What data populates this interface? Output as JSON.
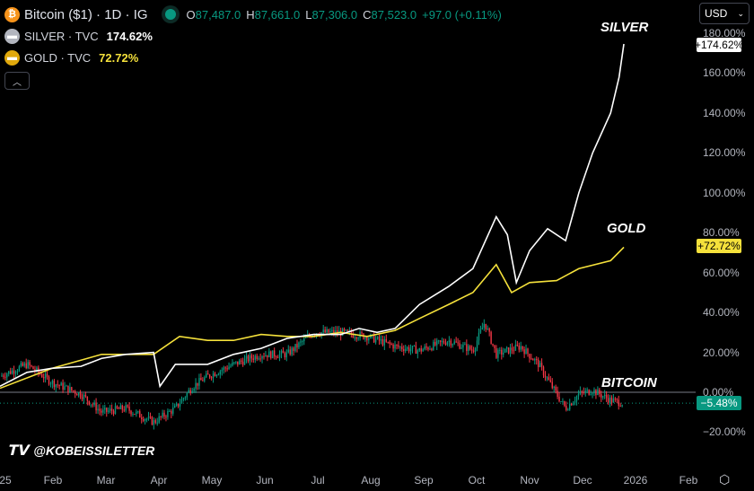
{
  "header": {
    "symbol": "Bitcoin ($1) · 1D · IG",
    "o_label": "O",
    "o": "87,487.0",
    "h_label": "H",
    "h": "87,661.0",
    "l_label": "L",
    "l": "87,306.0",
    "c_label": "C",
    "c": "87,523.0",
    "change": "+97.0 (+0.11%)"
  },
  "legend": [
    {
      "name": "SILVER · TVC",
      "value": "174.62%",
      "color": "#ffffff",
      "icon": "silver-bars-icon"
    },
    {
      "name": "GOLD · TVC",
      "value": "72.72%",
      "color": "#f5e13b",
      "icon": "gold-bars-icon"
    }
  ],
  "currency": "USD",
  "annotations": {
    "silver": "SILVER",
    "gold": "GOLD",
    "bitcoin": "BITCOIN"
  },
  "badges": {
    "silver": "+174.62%",
    "gold": "+72.72%",
    "bitcoin": "−5.48%"
  },
  "watermark": "@KOBEISSILETTER",
  "colors": {
    "silver": "#ffffff",
    "gold": "#f5e13b",
    "up": "#089981",
    "down": "#f23645"
  },
  "chart_data": {
    "type": "line",
    "x_unit": "months since 2025-01-01",
    "ylabel": "% change",
    "ylim": [
      -25,
      185
    ],
    "y_ticks": [
      "180.00%",
      "160.00%",
      "140.00%",
      "120.00%",
      "100.00%",
      "80.00%",
      "60.00%",
      "40.00%",
      "20.00%",
      "0.00%",
      "−20.00%"
    ],
    "y_tick_values": [
      180,
      160,
      140,
      120,
      100,
      80,
      60,
      40,
      20,
      0,
      -20
    ],
    "x_ticks": [
      "25",
      "Feb",
      "Mar",
      "Apr",
      "May",
      "Jun",
      "Jul",
      "Aug",
      "Sep",
      "Oct",
      "Nov",
      "Dec",
      "2026",
      "Feb"
    ],
    "x_tick_values": [
      0,
      1,
      2,
      3,
      4,
      5,
      6,
      7,
      8,
      9,
      10,
      11,
      12,
      13
    ],
    "series": [
      {
        "name": "SILVER",
        "t": [
          0,
          0.51,
          0.98,
          1.53,
          1.92,
          2.37,
          2.9,
          3.02,
          3.31,
          3.92,
          4.41,
          4.93,
          5.42,
          5.92,
          6.44,
          6.78,
          7.12,
          7.46,
          7.92,
          8.47,
          8.93,
          9.37,
          9.58,
          9.75,
          10,
          10.34,
          10.68,
          10.93,
          11.19,
          11.53,
          11.69,
          11.78
        ],
        "values": [
          3,
          10,
          12,
          13,
          17,
          19,
          20,
          3,
          14,
          14,
          19,
          22,
          27,
          29,
          29,
          32,
          30,
          32,
          44,
          53,
          62,
          88,
          79,
          55,
          71,
          82,
          76,
          100,
          120,
          140,
          158,
          174.62
        ]
      },
      {
        "name": "GOLD",
        "t": [
          0,
          0.98,
          1.92,
          2.9,
          3.39,
          3.92,
          4.41,
          4.93,
          5.42,
          5.92,
          6.44,
          6.93,
          7.46,
          7.92,
          8.47,
          8.93,
          9.37,
          9.66,
          10,
          10.51,
          10.93,
          11.53,
          11.78
        ],
        "values": [
          2,
          12,
          19,
          19,
          28,
          26,
          26,
          29,
          28,
          28,
          30,
          28,
          31,
          37,
          44,
          50,
          64,
          50,
          55,
          56,
          62,
          66,
          72.72
        ]
      },
      {
        "name": "BITCOIN",
        "t": [
          0,
          0.51,
          0.98,
          1.53,
          1.92,
          2.37,
          2.9,
          3.31,
          3.64,
          3.92,
          4.41,
          4.93,
          5.42,
          5.92,
          6.44,
          6.93,
          7.46,
          7.92,
          8.47,
          8.93,
          9.15,
          9.37,
          9.83,
          10.17,
          10.51,
          10.68,
          10.93,
          11.19,
          11.53,
          11.78
        ],
        "values": [
          8,
          14,
          5,
          -1,
          -10,
          -8,
          -15,
          -8,
          3,
          8,
          14,
          19,
          19,
          30,
          30,
          28,
          23,
          21,
          26,
          21,
          35,
          19,
          23,
          14,
          -1,
          -8,
          -1,
          1,
          -4,
          -5.48
        ]
      }
    ]
  }
}
